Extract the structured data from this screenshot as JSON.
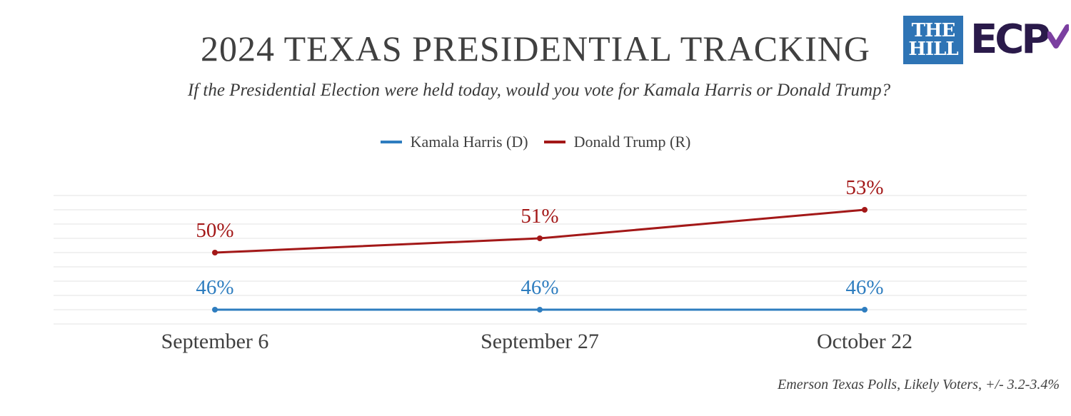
{
  "header": {
    "title": "2024 TEXAS PRESIDENTIAL TRACKING",
    "subtitle": "If the Presidential Election were held today, would you vote for Kamala Harris or Donald Trump?"
  },
  "logos": {
    "hill_line1": "THE",
    "hill_line2": "HILL",
    "ecp_text": "ECP"
  },
  "footer": {
    "source": "Emerson Texas Polls, Likely Voters,  +/- 3.2-3.4%"
  },
  "chart_data": {
    "type": "line",
    "title": "2024 TEXAS PRESIDENTIAL TRACKING",
    "categories": [
      "September 6",
      "September 27",
      "October 22"
    ],
    "series": [
      {
        "name": "Kamala Harris (D)",
        "values": [
          46,
          46,
          46
        ],
        "color": "#2e7dbf",
        "labels": [
          "46%",
          "46%",
          "46%"
        ]
      },
      {
        "name": "Donald Trump (R)",
        "values": [
          50,
          51,
          53
        ],
        "color": "#a31818",
        "labels": [
          "50%",
          "51%",
          "53%"
        ]
      }
    ],
    "ylim": [
      45,
      54
    ],
    "grid": true,
    "legend_position": "top-center",
    "xlabel": "",
    "ylabel": ""
  }
}
